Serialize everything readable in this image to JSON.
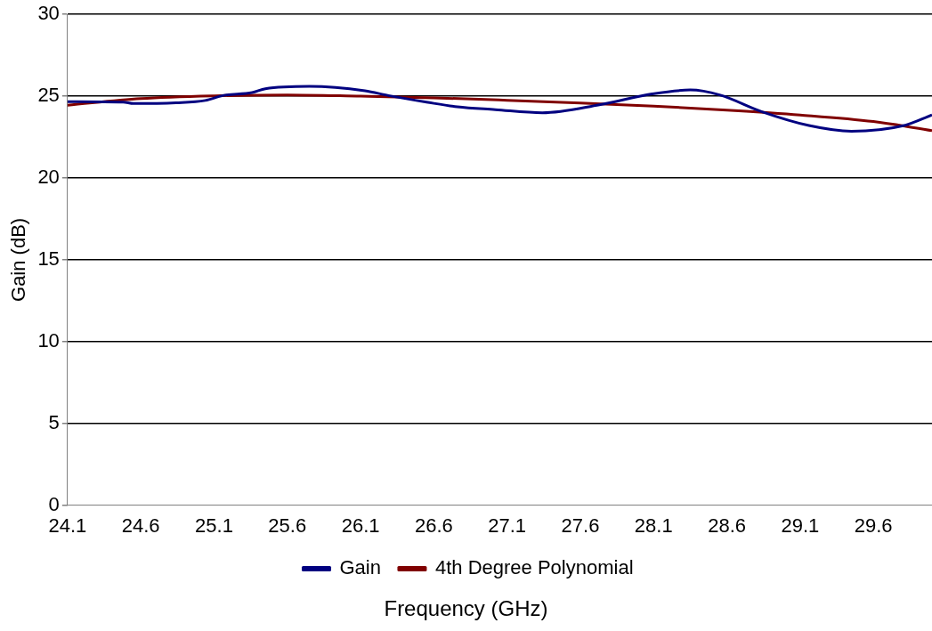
{
  "chart_data": {
    "type": "line",
    "xlabel": "Frequency (GHz)",
    "ylabel": "Gain (dB)",
    "xlim": [
      24.1,
      30.0
    ],
    "xticks": [
      24.1,
      24.6,
      25.1,
      25.6,
      26.1,
      26.6,
      27.1,
      27.6,
      28.1,
      28.6,
      29.1,
      29.6
    ],
    "ylim": [
      0,
      30
    ],
    "yticks": [
      0,
      5,
      10,
      15,
      20,
      25,
      30
    ],
    "grid": "y",
    "legend": "bottom",
    "marker": "none",
    "line_style": "solid",
    "series": [
      {
        "name": "Gain",
        "color": "#000080",
        "x": [
          24.1,
          24.48,
          24.55,
          24.84,
          25.04,
          25.16,
          25.36,
          25.45,
          25.75,
          26.13,
          26.29,
          26.55,
          26.76,
          27.02,
          27.34,
          27.73,
          28.09,
          28.35,
          28.55,
          28.84,
          29.16,
          29.45,
          29.81,
          30.0
        ],
        "values": [
          24.67,
          24.64,
          24.55,
          24.6,
          24.74,
          25.04,
          25.22,
          25.46,
          25.6,
          25.33,
          25.04,
          24.64,
          24.35,
          24.18,
          23.99,
          24.48,
          25.14,
          25.38,
          25.08,
          24.05,
          23.21,
          22.86,
          23.21,
          23.85
        ]
      },
      {
        "name": "4th Degree Polynomial",
        "color": "#800000",
        "x": [
          24.1,
          24.6,
          25.1,
          25.6,
          26.1,
          26.6,
          27.1,
          27.6,
          28.1,
          28.6,
          29.1,
          29.6,
          30.0
        ],
        "values": [
          24.45,
          24.85,
          25.02,
          25.08,
          25.0,
          24.9,
          24.75,
          24.58,
          24.4,
          24.15,
          23.85,
          23.45,
          22.9
        ]
      }
    ]
  }
}
